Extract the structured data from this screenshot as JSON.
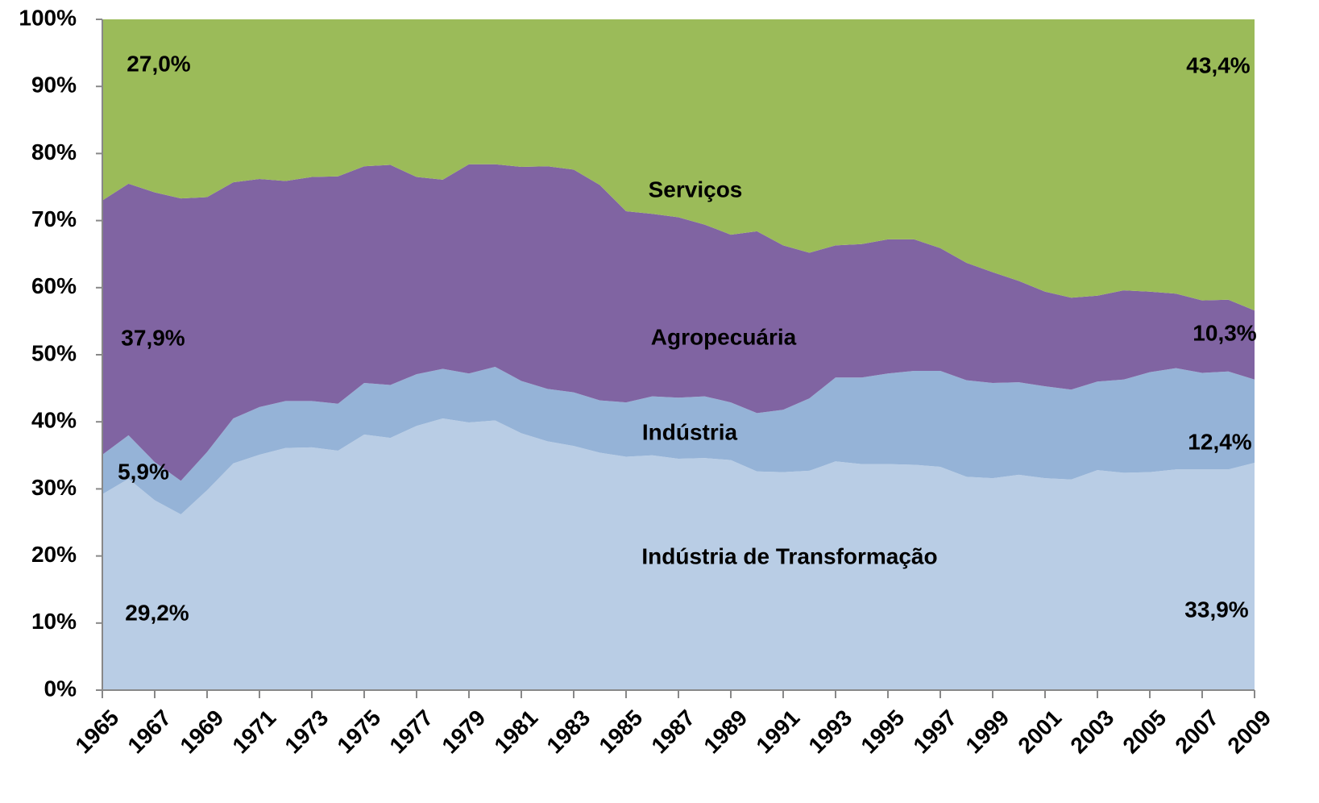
{
  "chart_data": {
    "type": "stacked_area",
    "x": [
      1965,
      1966,
      1967,
      1968,
      1969,
      1970,
      1971,
      1972,
      1973,
      1974,
      1975,
      1976,
      1977,
      1978,
      1979,
      1980,
      1981,
      1982,
      1983,
      1984,
      1985,
      1986,
      1987,
      1988,
      1989,
      1990,
      1991,
      1992,
      1993,
      1994,
      1995,
      1996,
      1997,
      1998,
      1999,
      2000,
      2001,
      2002,
      2003,
      2004,
      2005,
      2006,
      2007,
      2008,
      2009
    ],
    "xlim": [
      1965,
      2009
    ],
    "xticks": [
      1965,
      1967,
      1969,
      1971,
      1973,
      1975,
      1977,
      1979,
      1981,
      1983,
      1985,
      1987,
      1989,
      1991,
      1993,
      1995,
      1997,
      1999,
      2001,
      2003,
      2005,
      2007,
      2009
    ],
    "ylim": [
      0,
      100
    ],
    "yticks": [
      {
        "value": 0,
        "label": "0%"
      },
      {
        "value": 10,
        "label": "10%"
      },
      {
        "value": 20,
        "label": "20%"
      },
      {
        "value": 30,
        "label": "30%"
      },
      {
        "value": 40,
        "label": "40%"
      },
      {
        "value": 50,
        "label": "50%"
      },
      {
        "value": 60,
        "label": "60%"
      },
      {
        "value": 70,
        "label": "70%"
      },
      {
        "value": 80,
        "label": "80%"
      },
      {
        "value": 90,
        "label": "90%"
      },
      {
        "value": 100,
        "label": "100%"
      }
    ],
    "series": [
      {
        "name": "Indústria de Transformação",
        "color": "#b9cde5",
        "values": [
          29.2,
          31.5,
          28.3,
          26.2,
          29.8,
          33.8,
          35.1,
          36.1,
          36.2,
          35.7,
          38.1,
          37.6,
          39.4,
          40.5,
          39.9,
          40.2,
          38.3,
          37.1,
          36.4,
          35.4,
          34.8,
          35.0,
          34.5,
          34.6,
          34.3,
          32.6,
          32.5,
          32.7,
          34.1,
          33.7,
          33.7,
          33.6,
          33.3,
          31.8,
          31.6,
          32.1,
          31.6,
          31.4,
          32.8,
          32.4,
          32.5,
          32.9,
          32.9,
          32.9,
          33.9
        ],
        "value_labels": [
          "29,2%",
          null,
          null,
          null,
          null,
          null,
          null,
          null,
          null,
          null,
          null,
          null,
          null,
          null,
          null,
          null,
          null,
          null,
          null,
          null,
          null,
          null,
          null,
          null,
          null,
          null,
          null,
          null,
          null,
          null,
          null,
          null,
          null,
          null,
          null,
          null,
          null,
          null,
          null,
          null,
          null,
          null,
          null,
          null,
          "33,9%"
        ]
      },
      {
        "name": "Indústria",
        "color": "#95b3d7",
        "values": [
          5.9,
          6.5,
          5.7,
          5.0,
          5.7,
          6.7,
          7.1,
          7.0,
          6.9,
          7.0,
          7.7,
          7.9,
          7.7,
          7.4,
          7.3,
          8.0,
          7.8,
          7.8,
          8.0,
          7.8,
          8.1,
          8.8,
          9.1,
          9.2,
          8.6,
          8.7,
          9.3,
          10.8,
          12.5,
          12.9,
          13.5,
          14.0,
          14.3,
          14.4,
          14.2,
          13.8,
          13.7,
          13.4,
          13.2,
          13.9,
          14.9,
          15.1,
          14.4,
          14.6,
          12.4
        ],
        "value_labels": [
          "5,9%",
          null,
          null,
          null,
          null,
          null,
          null,
          null,
          null,
          null,
          null,
          null,
          null,
          null,
          null,
          null,
          null,
          null,
          null,
          null,
          null,
          null,
          null,
          null,
          null,
          null,
          null,
          null,
          null,
          null,
          null,
          null,
          null,
          null,
          null,
          null,
          null,
          null,
          null,
          null,
          null,
          null,
          null,
          null,
          "12,4%"
        ]
      },
      {
        "name": "Agropecuária",
        "color": "#8064a2",
        "values": [
          37.9,
          37.5,
          40.2,
          42.1,
          38.0,
          35.2,
          34.0,
          32.8,
          33.4,
          33.9,
          32.3,
          32.8,
          29.4,
          28.2,
          31.2,
          30.2,
          31.9,
          33.2,
          33.2,
          32.1,
          28.5,
          27.2,
          26.9,
          25.6,
          25.0,
          27.1,
          24.5,
          21.7,
          19.7,
          19.9,
          20.0,
          19.6,
          18.3,
          17.5,
          16.5,
          15.1,
          14.1,
          13.7,
          12.8,
          13.3,
          12.0,
          11.1,
          10.8,
          10.7,
          10.3
        ],
        "value_labels": [
          "37,9%",
          null,
          null,
          null,
          null,
          null,
          null,
          null,
          null,
          null,
          null,
          null,
          null,
          null,
          null,
          null,
          null,
          null,
          null,
          null,
          null,
          null,
          null,
          null,
          null,
          null,
          null,
          null,
          null,
          null,
          null,
          null,
          null,
          null,
          null,
          null,
          null,
          null,
          null,
          null,
          null,
          null,
          null,
          null,
          "10,3%"
        ]
      },
      {
        "name": "Serviços",
        "color": "#9bbb59",
        "values": [
          27.0,
          24.5,
          25.8,
          26.7,
          26.5,
          24.3,
          23.8,
          24.1,
          23.5,
          23.4,
          21.9,
          21.7,
          23.5,
          23.9,
          21.6,
          21.6,
          22.0,
          21.9,
          22.4,
          24.7,
          28.6,
          29.0,
          29.5,
          30.6,
          32.1,
          31.6,
          33.7,
          34.8,
          33.7,
          33.5,
          32.8,
          32.8,
          34.1,
          36.3,
          37.7,
          39.0,
          40.6,
          41.5,
          41.2,
          40.4,
          40.6,
          40.9,
          41.9,
          41.8,
          43.4
        ],
        "value_labels": [
          "27,0%",
          null,
          null,
          null,
          null,
          null,
          null,
          null,
          null,
          null,
          null,
          null,
          null,
          null,
          null,
          null,
          null,
          null,
          null,
          null,
          null,
          null,
          null,
          null,
          null,
          null,
          null,
          null,
          null,
          null,
          null,
          null,
          null,
          null,
          null,
          null,
          null,
          null,
          null,
          null,
          null,
          null,
          null,
          null,
          "43,4%"
        ]
      }
    ]
  }
}
